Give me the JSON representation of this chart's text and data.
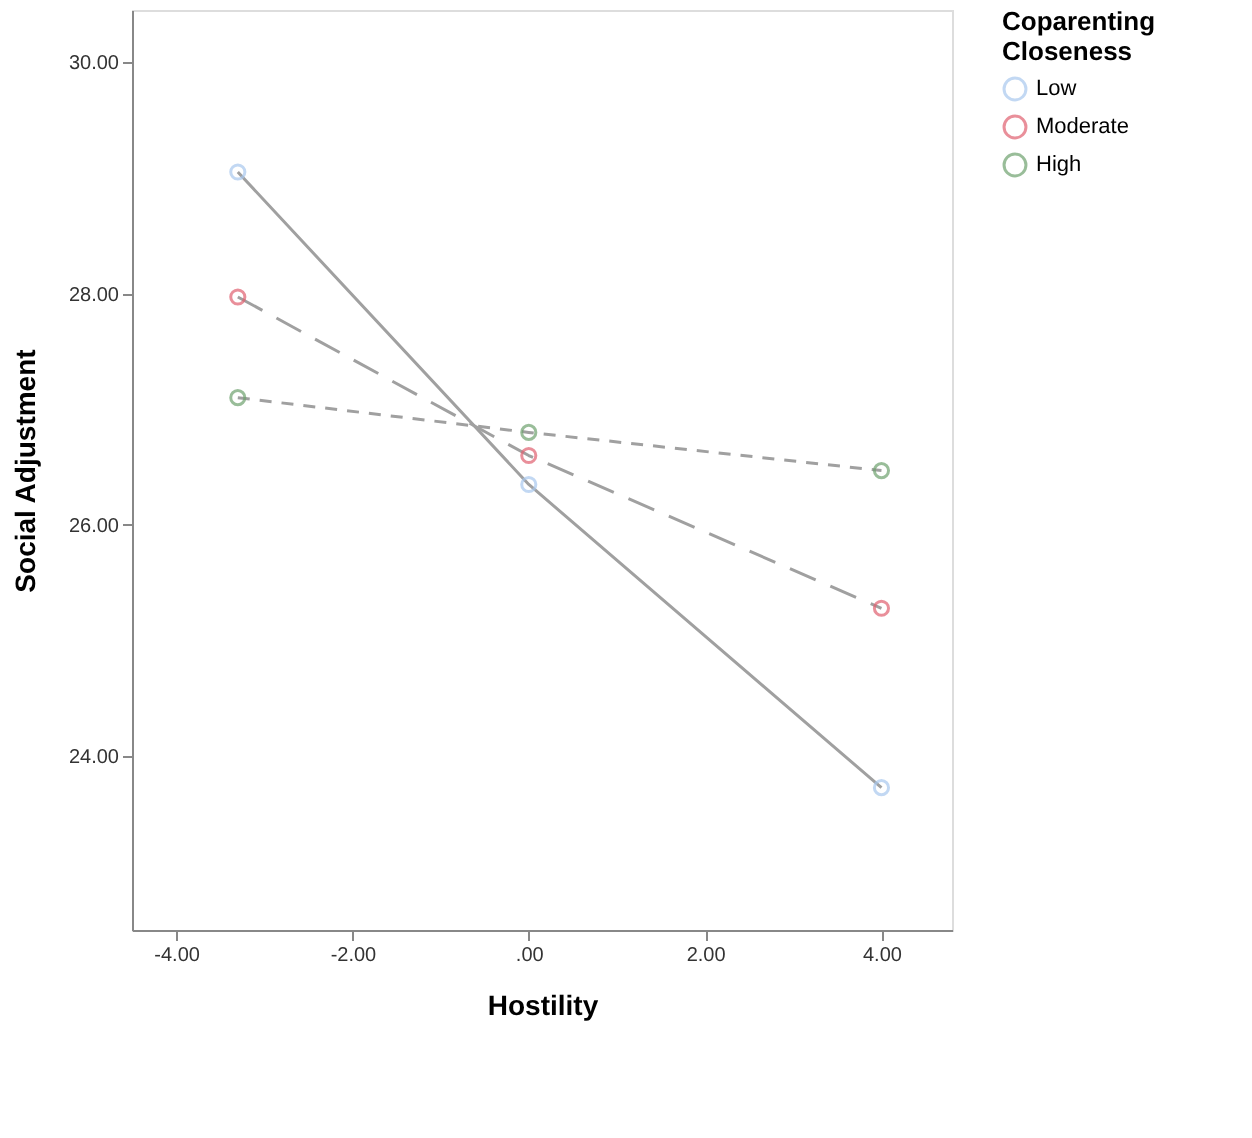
{
  "chart_data": {
    "type": "line",
    "xlabel": "Hostility",
    "ylabel": "Social Adjustment",
    "legend_title": "Coparenting Closeness",
    "x": [
      -3.3,
      0,
      4.0
    ],
    "series": [
      {
        "name": "Low",
        "color": "#a9c8ee",
        "values": [
          29.05,
          26.35,
          23.73
        ],
        "line_style": "solid"
      },
      {
        "name": "Moderate",
        "color": "#e06070",
        "values": [
          27.97,
          26.6,
          25.28
        ],
        "line_style": "dashed"
      },
      {
        "name": "High",
        "color": "#6fa26f",
        "values": [
          27.1,
          26.8,
          26.47
        ],
        "line_style": "dotted"
      }
    ],
    "xlim": [
      -4.5,
      4.8
    ],
    "ylim": [
      22.5,
      30.45
    ],
    "xticks": [
      {
        "value": -4,
        "label": "-4.00"
      },
      {
        "value": -2,
        "label": "-2.00"
      },
      {
        "value": 0,
        "label": ".00"
      },
      {
        "value": 2,
        "label": "2.00"
      },
      {
        "value": 4,
        "label": "4.00"
      }
    ],
    "yticks": [
      {
        "value": 24,
        "label": "24.00"
      },
      {
        "value": 26,
        "label": "26.00"
      },
      {
        "value": 28,
        "label": "28.00"
      },
      {
        "value": 30,
        "label": "30.00"
      }
    ],
    "marker": "circle",
    "grid": false,
    "legend": "top right"
  }
}
